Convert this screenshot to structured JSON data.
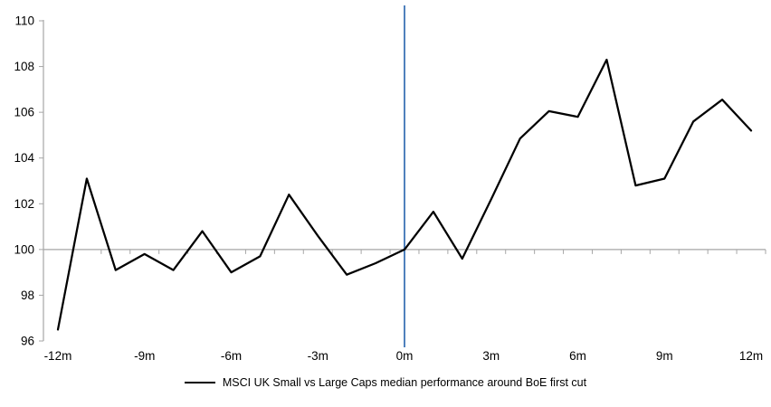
{
  "chart_data": {
    "type": "line",
    "title": "",
    "xlabel": "",
    "ylabel": "",
    "x": [
      -12,
      -11,
      -10,
      -9,
      -8,
      -7,
      -6,
      -5,
      -4,
      -3,
      -2,
      -1,
      0,
      1,
      2,
      3,
      4,
      5,
      6,
      7,
      8,
      9,
      10,
      11,
      12
    ],
    "series": [
      {
        "name": "MSCI UK Small vs Large Caps median performance around BoE first cut",
        "color": "#000000",
        "values": [
          96.5,
          103.1,
          99.1,
          99.8,
          99.1,
          100.8,
          99.0,
          99.7,
          102.4,
          100.6,
          98.9,
          99.4,
          100.0,
          101.65,
          99.6,
          102.2,
          104.85,
          106.05,
          105.8,
          108.3,
          102.8,
          103.1,
          105.6,
          106.55,
          105.2
        ]
      }
    ],
    "ylim": [
      96,
      110
    ],
    "y_axis": {
      "tick_values": [
        96,
        98,
        100,
        102,
        104,
        106,
        108,
        110
      ],
      "tick_labels": [
        "96",
        "98",
        "100",
        "102",
        "104",
        "106",
        "108",
        "110"
      ]
    },
    "x_axis": {
      "tick_values": [
        -12,
        -9,
        -6,
        -3,
        0,
        3,
        6,
        9,
        12
      ],
      "tick_labels": [
        "-12m",
        "-9m",
        "-6m",
        "-3m",
        "0m",
        "3m",
        "6m",
        "9m",
        "12m"
      ]
    },
    "baseline": {
      "value": 100
    },
    "event_line": {
      "x": 0,
      "color": "#4f81bd"
    },
    "grid": false,
    "legend_position": "bottom"
  },
  "colors": {
    "background": "#ffffff",
    "axis": "#a6a6a6",
    "text": "#000000",
    "series": "#000000",
    "event_line": "#4f81bd"
  }
}
